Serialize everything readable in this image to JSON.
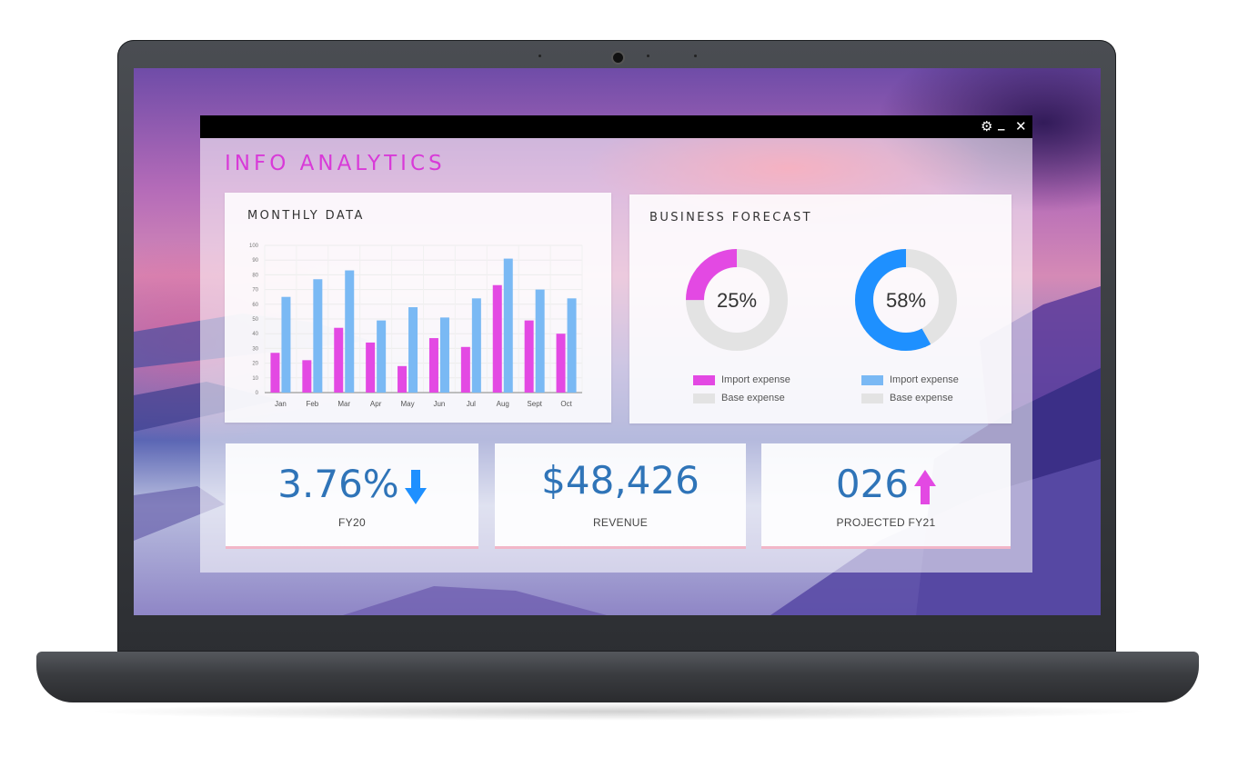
{
  "window": {
    "title": "INFO ANALYTICS",
    "controls": {
      "settings_icon": "gear-icon",
      "minimize_label": "_",
      "close_label": "✕"
    }
  },
  "monthly_data": {
    "title": "MONTHLY DATA"
  },
  "business_forecast": {
    "title": "BUSINESS FORECAST",
    "donuts": [
      {
        "value_label": "25%",
        "percent": 25,
        "color": "#e349e3",
        "legend": [
          "Import expense",
          "Base expense"
        ]
      },
      {
        "value_label": "58%",
        "percent": 58,
        "color": "#1e90ff",
        "legend": [
          "Import expense",
          "Base expense"
        ]
      }
    ]
  },
  "kpis": [
    {
      "value": "3.76%",
      "label": "FY20",
      "trend": "down",
      "arrow_color": "#1e90ff"
    },
    {
      "value": "$48,426",
      "label": "REVENUE"
    },
    {
      "value": "026",
      "label": "PROJECTED FY21",
      "trend": "up",
      "arrow_color": "#e349e3"
    }
  ],
  "chart_data": {
    "type": "bar",
    "title": "MONTHLY DATA",
    "categories": [
      "Jan",
      "Feb",
      "Mar",
      "Apr",
      "May",
      "Jun",
      "Jul",
      "Aug",
      "Sept",
      "Oct"
    ],
    "series": [
      {
        "values": [
          27,
          22,
          44,
          34,
          18,
          37,
          31,
          73,
          49,
          40
        ],
        "color": "#e349e3"
      },
      {
        "values": [
          65,
          77,
          83,
          49,
          58,
          51,
          64,
          91,
          70,
          64
        ],
        "color": "#7ab9f4"
      }
    ],
    "yticks": [
      0,
      10,
      20,
      30,
      40,
      50,
      60,
      70,
      80,
      90,
      100
    ],
    "ylim": [
      0,
      100
    ],
    "grid": true
  }
}
